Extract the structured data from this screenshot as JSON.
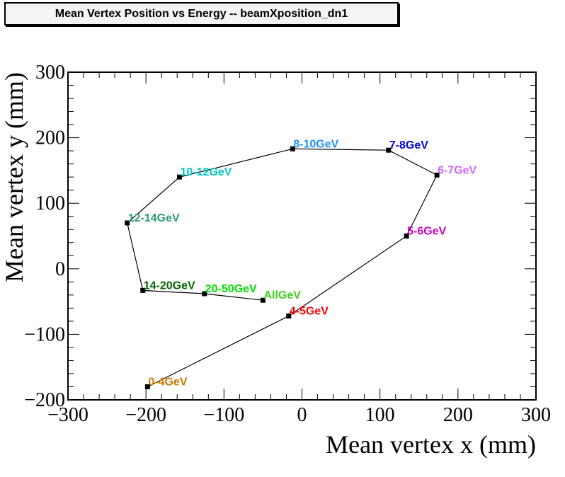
{
  "chart_data": {
    "type": "line",
    "title": "Mean Vertex Position vs Energy -- beamXposition_dn1",
    "xlabel": "Mean vertex x (mm)",
    "ylabel": "Mean vertex y (mm)",
    "xlim": [
      -300,
      300
    ],
    "ylim": [
      -200,
      300
    ],
    "xticks": [
      -300,
      -200,
      -100,
      0,
      100,
      200,
      300
    ],
    "yticks": [
      -200,
      -100,
      0,
      100,
      200,
      300
    ],
    "xtick_labels": [
      "−300",
      "−200",
      "−100",
      "0",
      "100",
      "200",
      "300"
    ],
    "ytick_labels": [
      "−200",
      "−100",
      "0",
      "100",
      "200",
      "300"
    ],
    "grid": false,
    "points": [
      {
        "label": "0-4GeV",
        "x": -198,
        "y": -180,
        "color": "#c87a00"
      },
      {
        "label": "4-5GeV",
        "x": -17,
        "y": -72,
        "color": "#ff0000"
      },
      {
        "label": "5-6GeV",
        "x": 134,
        "y": 50,
        "color": "#cc00cc"
      },
      {
        "label": "6-7GeV",
        "x": 173,
        "y": 143,
        "color": "#cc66ff"
      },
      {
        "label": "7-8GeV",
        "x": 111,
        "y": 181,
        "color": "#0000e0"
      },
      {
        "label": "8-10GeV",
        "x": -12,
        "y": 183,
        "color": "#1e90ff"
      },
      {
        "label": "10-12GeV",
        "x": -157,
        "y": 140,
        "color": "#00c8c8"
      },
      {
        "label": "12-14GeV",
        "x": -224,
        "y": 70,
        "color": "#2e9e6e"
      },
      {
        "label": "14-20GeV",
        "x": -204,
        "y": -33,
        "color": "#006400"
      },
      {
        "label": "20-50GeV",
        "x": -125,
        "y": -38,
        "color": "#00e000"
      },
      {
        "label": "AllGeV",
        "x": -50,
        "y": -48,
        "color": "#44cc22"
      }
    ]
  }
}
